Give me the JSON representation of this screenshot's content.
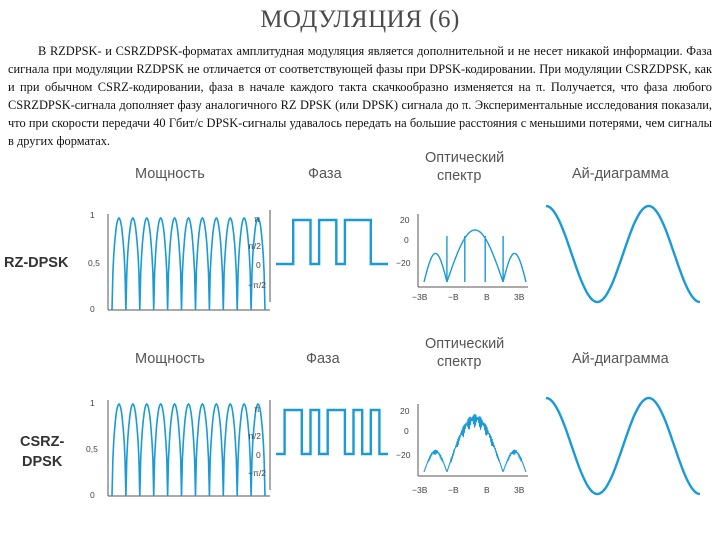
{
  "slide": {
    "title": "МОДУЛЯЦИЯ (6)",
    "paragraph": "В RZDPSK- и CSRZDPSK-форматах амплитудная модуляция является дополнительной и не несет никакой информации. Фаза сигнала при модуляции RZDPSK не отличается от соответствующей фазы при DPSK-кодировании. При модуляции CSRZDPSK, как и при обычном CSRZ-кодировании, фаза в начале каждого такта скачкообразно изменяется на π. Получается, что фаза любого CSRZDPSK-сигнала дополняет фазу аналогичного RZ DPSK (или DPSK) сигнала до π. Экспериментальные исследования показали, что при скорости передачи 40 Гбит/с DPSK-сигналы удавалось передать на большие расстояния с меньшими потерями, чем сигналы в других форматах."
  },
  "figure": {
    "columns": {
      "power": "Мощность",
      "phase": "Фаза",
      "spectrum_line1": "Оптический",
      "spectrum_line2": "спектр",
      "eye": "Ай-диаграмма"
    },
    "rows": [
      {
        "label_line1": "RZ-DPSK",
        "label_line2": "",
        "power_ticks": [
          "1",
          "0,5",
          "0"
        ],
        "phase_ticks": [
          "π",
          "π/2",
          "0",
          "−π/2"
        ],
        "spectrum_yticks": [
          "20",
          "0",
          "−20"
        ],
        "spectrum_xticks": [
          "−3B",
          "−B",
          "B",
          "3B"
        ],
        "pulse_count": 11,
        "phase_levels": [
          0,
          0,
          1,
          1,
          0,
          1,
          1,
          0,
          1,
          1,
          1,
          0,
          0
        ],
        "spectrum_sidelobes": true
      },
      {
        "label_line1": "CSRZ-",
        "label_line2": "DPSK",
        "power_ticks": [
          "1",
          "0,5",
          "0"
        ],
        "phase_ticks": [
          "π",
          "π/2",
          "0",
          "−π/2"
        ],
        "spectrum_yticks": [
          "20",
          "0",
          "−20"
        ],
        "spectrum_xticks": [
          "−3B",
          "−B",
          "B",
          "3B"
        ],
        "pulse_count": 11,
        "phase_levels": [
          0,
          1,
          1,
          0,
          1,
          0,
          1,
          1,
          0,
          1,
          0,
          1,
          0
        ],
        "spectrum_sidelobes": false
      }
    ],
    "color": "#1a9ad6"
  }
}
